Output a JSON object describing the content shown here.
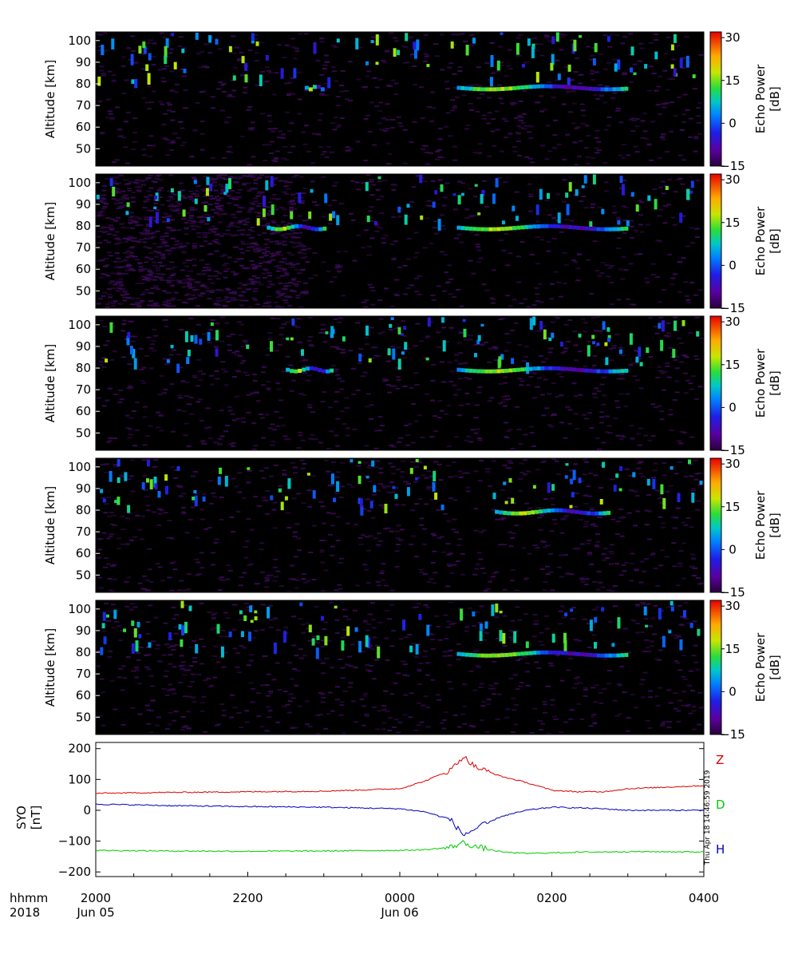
{
  "chart_data": [
    {
      "type": "heatmap",
      "ylabel": "Altitude [km]",
      "yticks": [
        50,
        60,
        70,
        80,
        90,
        100
      ],
      "ylim": [
        42,
        104
      ],
      "colorbar": {
        "label": "Echo Power [dB]",
        "ticks": [
          -15,
          0,
          15,
          30
        ],
        "range": [
          -15,
          32
        ]
      },
      "echo_layers": [
        {
          "start": "2018-06-05T22:45",
          "end": "2018-06-05T23:00",
          "altitude_km": 78
        },
        {
          "start": "2018-06-06T00:45",
          "end": "2018-06-06T03:00",
          "altitude_km": 78
        }
      ]
    },
    {
      "type": "heatmap",
      "ylabel": "Altitude [km]",
      "yticks": [
        50,
        60,
        70,
        80,
        90,
        100
      ],
      "ylim": [
        42,
        104
      ],
      "colorbar": {
        "label": "Echo Power [dB]",
        "ticks": [
          -15,
          0,
          15,
          30
        ],
        "range": [
          -15,
          32
        ]
      },
      "echo_layers": [
        {
          "start": "2018-06-05T22:15",
          "end": "2018-06-05T23:00",
          "altitude_km": 79
        },
        {
          "start": "2018-06-06T00:45",
          "end": "2018-06-06T03:00",
          "altitude_km": 79
        }
      ]
    },
    {
      "type": "heatmap",
      "ylabel": "Altitude [km]",
      "yticks": [
        50,
        60,
        70,
        80,
        90,
        100
      ],
      "ylim": [
        42,
        104
      ],
      "colorbar": {
        "label": "Echo Power [dB]",
        "ticks": [
          -15,
          0,
          15,
          30
        ],
        "range": [
          -15,
          32
        ]
      },
      "echo_layers": [
        {
          "start": "2018-06-05T22:30",
          "end": "2018-06-05T23:05",
          "altitude_km": 79
        },
        {
          "start": "2018-06-06T00:45",
          "end": "2018-06-06T03:00",
          "altitude_km": 79
        }
      ]
    },
    {
      "type": "heatmap",
      "ylabel": "Altitude [km]",
      "yticks": [
        50,
        60,
        70,
        80,
        90,
        100
      ],
      "ylim": [
        42,
        104
      ],
      "colorbar": {
        "label": "Echo Power [dB]",
        "ticks": [
          -15,
          0,
          15,
          30
        ],
        "range": [
          -15,
          32
        ]
      },
      "echo_layers": [
        {
          "start": "2018-06-06T01:15",
          "end": "2018-06-06T02:45",
          "altitude_km": 79
        }
      ]
    },
    {
      "type": "heatmap",
      "ylabel": "Altitude [km]",
      "yticks": [
        50,
        60,
        70,
        80,
        90,
        100
      ],
      "ylim": [
        42,
        104
      ],
      "colorbar": {
        "label": "Echo Power [dB]",
        "ticks": [
          -15,
          0,
          15,
          30
        ],
        "range": [
          -15,
          32
        ]
      },
      "echo_layers": [
        {
          "start": "2018-06-06T00:45",
          "end": "2018-06-06T03:00",
          "altitude_km": 79
        }
      ]
    },
    {
      "type": "line",
      "ylabel": "SYO [nT]",
      "yticks": [
        200,
        100,
        0,
        -100,
        -200
      ],
      "ylim": [
        -215,
        220
      ],
      "x": [
        "2018-06-05T20:00",
        "2018-06-05T21:00",
        "2018-06-05T22:00",
        "2018-06-05T23:00",
        "2018-06-06T00:00",
        "2018-06-06T00:20",
        "2018-06-06T00:40",
        "2018-06-06T00:50",
        "2018-06-06T01:00",
        "2018-06-06T01:20",
        "2018-06-06T01:40",
        "2018-06-06T02:00",
        "2018-06-06T02:20",
        "2018-06-06T02:40",
        "2018-06-06T03:00",
        "2018-06-06T04:00"
      ],
      "series": [
        {
          "name": "Z",
          "color": "#dd0000",
          "values": [
            55,
            58,
            60,
            62,
            70,
            95,
            130,
            175,
            140,
            110,
            90,
            65,
            60,
            60,
            70,
            80
          ]
        },
        {
          "name": "D",
          "color": "#00cc00",
          "values": [
            -130,
            -132,
            -133,
            -132,
            -130,
            -128,
            -120,
            -105,
            -118,
            -135,
            -140,
            -138,
            -136,
            -135,
            -134,
            -135
          ]
        },
        {
          "name": "H",
          "color": "#0000bb",
          "values": [
            20,
            15,
            12,
            10,
            5,
            -5,
            -30,
            -80,
            -60,
            -20,
            0,
            10,
            8,
            5,
            0,
            0
          ]
        }
      ]
    }
  ],
  "axis": {
    "hhmm_label": "hhmm",
    "year_label": "2018",
    "ticks": [
      {
        "time": "2018-06-05T20:00",
        "label": "2000",
        "date": "Jun 05"
      },
      {
        "time": "2018-06-05T22:00",
        "label": "2200",
        "date": ""
      },
      {
        "time": "2018-06-06T00:00",
        "label": "0000",
        "date": "Jun 06"
      },
      {
        "time": "2018-06-06T02:00",
        "label": "0200",
        "date": ""
      },
      {
        "time": "2018-06-06T04:00",
        "label": "0400",
        "date": ""
      }
    ]
  },
  "stamp": "Thu Apr 18 14:46:59 2019",
  "colors": {
    "background": "#000000",
    "noise": "#3a0a55",
    "z": "#dd0000",
    "d": "#00cc00",
    "h": "#0000bb"
  }
}
